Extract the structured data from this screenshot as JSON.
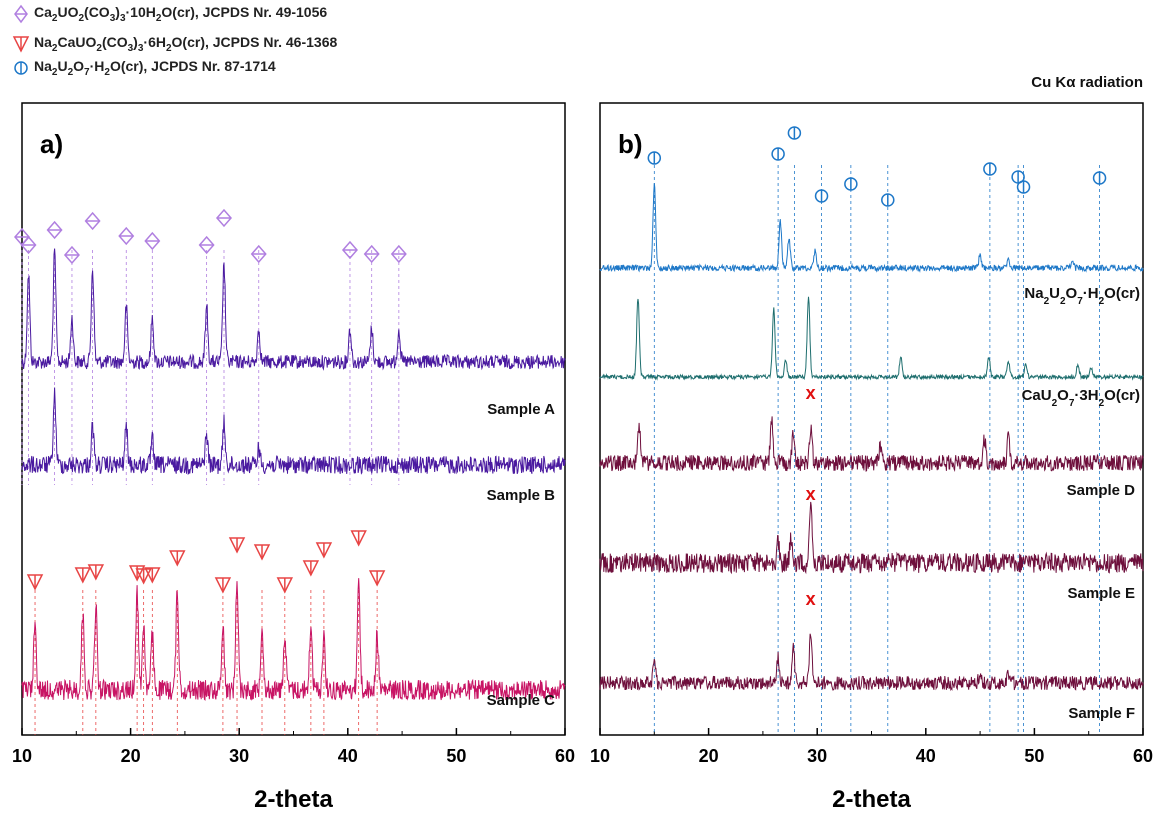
{
  "legend": {
    "items": [
      {
        "marker": "diamond",
        "color": "#b07fe0",
        "phase": "Ca2UO2(CO3)3·10H2O(cr)",
        "ref": ", JCPDS Nr. 49-1056"
      },
      {
        "marker": "triangle",
        "color": "#e84545",
        "phase": "Na2CaUO2(CO3)3·6H2O(cr)",
        "ref": ", JCPDS Nr. 46-1368"
      },
      {
        "marker": "circle",
        "color": "#1e78c8",
        "phase": "Na2U2O7·H2O(cr)",
        "ref": ", JCPDS Nr. 87-1714"
      }
    ]
  },
  "radiation_label": "Cu Kα radiation",
  "chart_data": [
    {
      "type": "line",
      "panel_label": "a)",
      "xlabel": "2-theta",
      "xlim": [
        10,
        60
      ],
      "xticks": [
        10,
        20,
        30,
        40,
        50,
        60
      ],
      "y_ticks_shown": false,
      "series": [
        {
          "name": "Sample A",
          "color": "#4a1aa0",
          "style": "diamond-phase",
          "peaks": [
            [
              10.6,
              0.8
            ],
            [
              13.0,
              1.0
            ],
            [
              14.6,
              0.4
            ],
            [
              16.5,
              0.85
            ],
            [
              19.6,
              0.5
            ],
            [
              22.0,
              0.4
            ],
            [
              27.0,
              0.5
            ],
            [
              28.6,
              0.9
            ],
            [
              31.8,
              0.3
            ],
            [
              40.2,
              0.3
            ],
            [
              42.2,
              0.3
            ],
            [
              44.7,
              0.3
            ]
          ]
        },
        {
          "name": "Sample B",
          "color": "#4a1aa0",
          "style": "diamond-phase",
          "peaks": [
            [
              13.0,
              1.0
            ],
            [
              16.5,
              0.55
            ],
            [
              19.6,
              0.55
            ],
            [
              22.0,
              0.35
            ],
            [
              27.0,
              0.45
            ],
            [
              28.6,
              0.6
            ],
            [
              31.8,
              0.25
            ]
          ]
        },
        {
          "name": "Sample C",
          "color": "#c81464",
          "style": "triangle-phase",
          "peaks": [
            [
              11.2,
              0.6
            ],
            [
              15.6,
              0.7
            ],
            [
              16.8,
              0.75
            ],
            [
              20.6,
              0.9
            ],
            [
              21.2,
              0.6
            ],
            [
              22.0,
              0.5
            ],
            [
              24.3,
              0.9
            ],
            [
              28.5,
              0.6
            ],
            [
              29.8,
              1.0
            ],
            [
              32.1,
              0.6
            ],
            [
              34.2,
              0.5
            ],
            [
              36.6,
              0.6
            ],
            [
              37.8,
              0.5
            ],
            [
              41.0,
              1.0
            ],
            [
              42.7,
              0.5
            ]
          ]
        }
      ],
      "reference_phase": "Ca2UO2(CO3)3·10H2O(cr)",
      "diamond_positions": [
        10.0,
        10.6,
        13.0,
        14.6,
        16.5,
        19.6,
        22.0,
        27.0,
        28.6,
        31.8,
        40.2,
        42.2,
        44.7
      ],
      "triangle_positions": [
        11.2,
        15.6,
        16.8,
        20.6,
        21.2,
        22.0,
        24.3,
        28.5,
        29.8,
        32.1,
        34.2,
        36.6,
        37.8,
        41.0,
        42.7
      ]
    },
    {
      "type": "line",
      "panel_label": "b)",
      "xlabel": "2-theta",
      "xlim": [
        10,
        60
      ],
      "xticks": [
        10,
        20,
        30,
        40,
        50,
        60
      ],
      "y_ticks_shown": false,
      "series": [
        {
          "name": "Na2U2O7·H2O(cr)",
          "color": "#1e78c8",
          "peaks": [
            [
              15.0,
              1.0
            ],
            [
              26.6,
              0.55
            ],
            [
              27.4,
              0.35
            ],
            [
              29.8,
              0.2
            ],
            [
              45.0,
              0.15
            ],
            [
              47.6,
              0.1
            ],
            [
              53.5,
              0.06
            ]
          ]
        },
        {
          "name": "CaU2O7·3H2O(cr)",
          "color": "#1e6e6e",
          "peaks": [
            [
              13.5,
              1.0
            ],
            [
              26.0,
              0.85
            ],
            [
              27.1,
              0.2
            ],
            [
              29.2,
              1.0
            ],
            [
              37.7,
              0.25
            ],
            [
              45.8,
              0.25
            ],
            [
              47.6,
              0.2
            ],
            [
              49.2,
              0.15
            ],
            [
              54.0,
              0.15
            ],
            [
              55.2,
              0.12
            ]
          ]
        },
        {
          "name": "Sample D",
          "color": "#6e0f3c",
          "peaks": [
            [
              13.6,
              0.8
            ],
            [
              25.8,
              0.9
            ],
            [
              27.8,
              0.6
            ],
            [
              29.4,
              0.7
            ],
            [
              35.8,
              0.3
            ],
            [
              45.4,
              0.5
            ],
            [
              47.6,
              0.5
            ]
          ]
        },
        {
          "name": "Sample E",
          "color": "#6e0f3c",
          "peaks": [
            [
              26.4,
              0.4
            ],
            [
              27.6,
              0.4
            ],
            [
              29.4,
              1.0
            ]
          ]
        },
        {
          "name": "Sample F",
          "color": "#6e0f3c",
          "peaks": [
            [
              15.0,
              0.4
            ],
            [
              26.4,
              0.5
            ],
            [
              27.8,
              0.7
            ],
            [
              29.4,
              1.0
            ],
            [
              45.0,
              0.2
            ],
            [
              47.6,
              0.2
            ]
          ]
        }
      ],
      "circle_positions": [
        15.0,
        26.4,
        27.9,
        30.4,
        33.1,
        36.5,
        45.9,
        48.5,
        49.0,
        56.0
      ],
      "x_marks": [
        {
          "x": 29.4,
          "label": "x"
        },
        {
          "x": 29.4,
          "label": "x"
        },
        {
          "x": 29.4,
          "label": "x"
        }
      ]
    }
  ]
}
